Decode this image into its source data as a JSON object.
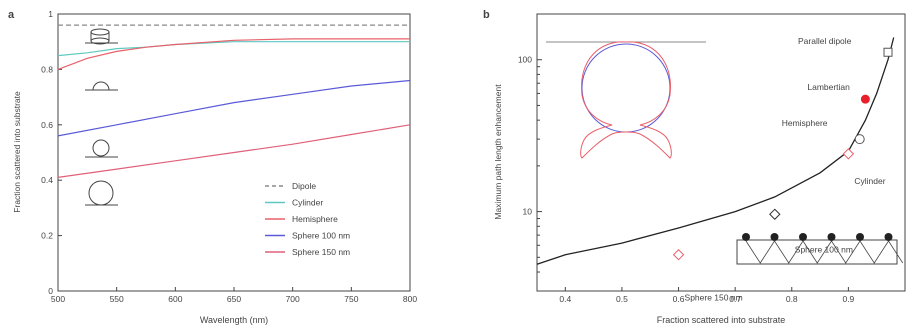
{
  "chart_data": [
    {
      "panel": "a",
      "type": "line",
      "xlabel": "Wavelength (nm)",
      "ylabel": "Fraction scattered into substrate",
      "xlim": [
        500,
        800
      ],
      "ylim": [
        0,
        1
      ],
      "xticks": [
        500,
        550,
        600,
        650,
        700,
        750,
        800
      ],
      "yticks": [
        0,
        0.2,
        0.4,
        0.6,
        0.8,
        1
      ],
      "ytick_labels": [
        "0",
        "0.2",
        "0.4",
        "0.6",
        "0.8",
        "1"
      ],
      "legend_position": "bottom-right",
      "series": [
        {
          "name": "Dipole",
          "color": "#8a8a8a",
          "dash": true,
          "x": [
            500,
            800
          ],
          "y": [
            0.96,
            0.96
          ]
        },
        {
          "name": "Cylinder",
          "color": "#5ec8c0",
          "x": [
            500,
            525,
            550,
            575,
            600,
            650,
            700,
            750,
            800
          ],
          "y": [
            0.85,
            0.86,
            0.875,
            0.88,
            0.89,
            0.9,
            0.9,
            0.9,
            0.9
          ]
        },
        {
          "name": "Hemisphere",
          "color": "#e8606a",
          "x": [
            500,
            525,
            550,
            575,
            600,
            650,
            700,
            750,
            800
          ],
          "y": [
            0.8,
            0.84,
            0.865,
            0.88,
            0.89,
            0.905,
            0.91,
            0.91,
            0.91
          ]
        },
        {
          "name": "Sphere 100 nm",
          "color": "#5a5ad8",
          "x": [
            500,
            550,
            600,
            650,
            700,
            750,
            800
          ],
          "y": [
            0.56,
            0.6,
            0.64,
            0.68,
            0.71,
            0.74,
            0.76
          ]
        },
        {
          "name": "Sphere 150 nm",
          "color": "#e0607a",
          "x": [
            500,
            550,
            600,
            650,
            700,
            750,
            800
          ],
          "y": [
            0.41,
            0.44,
            0.47,
            0.5,
            0.53,
            0.565,
            0.6
          ]
        }
      ]
    },
    {
      "panel": "b",
      "type": "scatter",
      "xlabel": "Fraction scattered into substrate",
      "ylabel": "Maximum path length enhancement",
      "xlim": [
        0.35,
        1.0
      ],
      "ylim": [
        3,
        200
      ],
      "yscale": "log",
      "xticks": [
        0.4,
        0.5,
        0.6,
        0.7,
        0.8,
        0.9
      ],
      "yticks": [
        10,
        100
      ],
      "curve": {
        "color": "#222222",
        "x": [
          0.35,
          0.4,
          0.5,
          0.6,
          0.7,
          0.77,
          0.85,
          0.9,
          0.93,
          0.95,
          0.97,
          0.98
        ],
        "y": [
          4.5,
          5.2,
          6.2,
          7.8,
          10,
          12.5,
          18,
          25,
          40,
          60,
          100,
          140
        ]
      },
      "points": [
        {
          "label": "Sphere 150 nm",
          "x": 0.6,
          "y": 5.2,
          "marker": "diamond",
          "color": "#e8606a"
        },
        {
          "label": "Sphere 100 nm",
          "x": 0.77,
          "y": 9.6,
          "marker": "diamond",
          "color": "#333333"
        },
        {
          "label": "Cylinder",
          "x": 0.9,
          "y": 24,
          "marker": "diamond",
          "color": "#e8606a"
        },
        {
          "label": "Hemisphere",
          "x": 0.92,
          "y": 30,
          "marker": "circle",
          "color": "#555555"
        },
        {
          "label": "Lambertian",
          "x": 0.93,
          "y": 55,
          "marker": "filled-circle",
          "color": "#e8202a"
        },
        {
          "label": "Parallel dipole",
          "x": 0.97,
          "y": 112,
          "marker": "square",
          "color": "#555555"
        }
      ]
    }
  ],
  "colors": {
    "axis": "#444444",
    "inset_substrate": "#888888",
    "inset_sphere": "#5a5ad8",
    "inset_pattern": "#e8606a"
  }
}
